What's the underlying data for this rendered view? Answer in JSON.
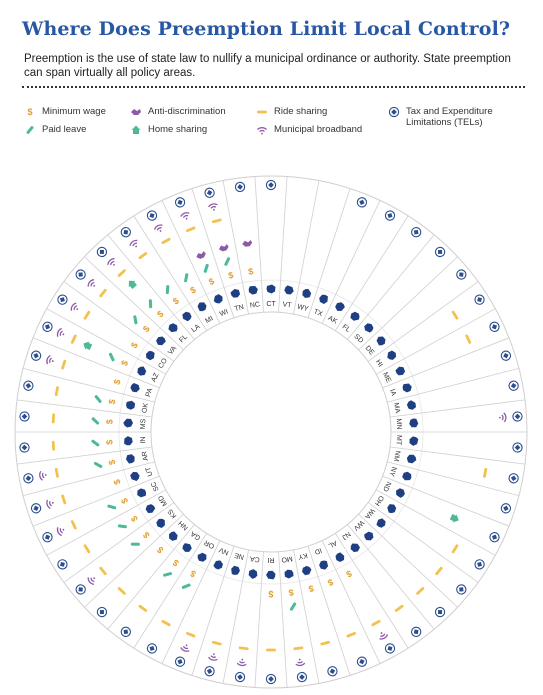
{
  "header": {
    "title": "Where Does Preemption Limit Local Control?",
    "subtitle": "Preemption is the use of state law to nullify a municipal ordinance or authority. State preemption can span virtually all policy areas."
  },
  "legend": {
    "items": [
      {
        "key": "min_wage",
        "label": "Minimum wage",
        "icon": "dollar-icon",
        "color": "#e0a030"
      },
      {
        "key": "paid_leave",
        "label": "Paid leave",
        "icon": "bandage-icon",
        "color": "#4db89a"
      },
      {
        "key": "anti_disc",
        "label": "Anti-discrimination",
        "icon": "handshake-icon",
        "color": "#8e5aa8"
      },
      {
        "key": "home_share",
        "label": "Home sharing",
        "icon": "house-icon",
        "color": "#4db89a"
      },
      {
        "key": "ride_share",
        "label": "Ride sharing",
        "icon": "car-icon",
        "color": "#f2c14e"
      },
      {
        "key": "broadband",
        "label": "Municipal broadband",
        "icon": "wifi-icon",
        "color": "#8e5aa8"
      },
      {
        "key": "tel",
        "label": "Tax and Expenditure Limitations (TELs)",
        "icon": "badge-icon",
        "color": "#2c4e8c"
      }
    ]
  },
  "colors": {
    "accent": "#2857a4",
    "state_fill": "#1e3f82",
    "ring_border": "#cfcfcf"
  },
  "chart_data": {
    "type": "radial-table",
    "ring_order_inside_out": [
      "state",
      "min_wage",
      "paid_leave",
      "anti_disc",
      "home_share",
      "ride_share",
      "broadband",
      "tel"
    ],
    "states": [
      {
        "abbr": "CT",
        "min_wage": 0,
        "paid_leave": 0,
        "anti_disc": 0,
        "home_share": 0,
        "ride_share": 0,
        "broadband": 0,
        "tel": 1
      },
      {
        "abbr": "VT",
        "min_wage": 0,
        "paid_leave": 0,
        "anti_disc": 0,
        "home_share": 0,
        "ride_share": 0,
        "broadband": 0,
        "tel": 0
      },
      {
        "abbr": "WY",
        "min_wage": 0,
        "paid_leave": 0,
        "anti_disc": 0,
        "home_share": 0,
        "ride_share": 0,
        "broadband": 0,
        "tel": 0
      },
      {
        "abbr": "TX",
        "min_wage": 0,
        "paid_leave": 0,
        "anti_disc": 0,
        "home_share": 0,
        "ride_share": 0,
        "broadband": 0,
        "tel": 1
      },
      {
        "abbr": "AK",
        "min_wage": 0,
        "paid_leave": 0,
        "anti_disc": 0,
        "home_share": 0,
        "ride_share": 0,
        "broadband": 0,
        "tel": 1
      },
      {
        "abbr": "FL",
        "min_wage": 0,
        "paid_leave": 0,
        "anti_disc": 0,
        "home_share": 0,
        "ride_share": 0,
        "broadband": 0,
        "tel": 1
      },
      {
        "abbr": "SD",
        "min_wage": 0,
        "paid_leave": 0,
        "anti_disc": 0,
        "home_share": 0,
        "ride_share": 0,
        "broadband": 0,
        "tel": 1
      },
      {
        "abbr": "DE",
        "min_wage": 0,
        "paid_leave": 0,
        "anti_disc": 0,
        "home_share": 0,
        "ride_share": 0,
        "broadband": 0,
        "tel": 1
      },
      {
        "abbr": "HI",
        "min_wage": 0,
        "paid_leave": 0,
        "anti_disc": 0,
        "home_share": 0,
        "ride_share": 1,
        "broadband": 0,
        "tel": 1
      },
      {
        "abbr": "ME",
        "min_wage": 0,
        "paid_leave": 0,
        "anti_disc": 0,
        "home_share": 0,
        "ride_share": 1,
        "broadband": 0,
        "tel": 1
      },
      {
        "abbr": "IA",
        "min_wage": 0,
        "paid_leave": 0,
        "anti_disc": 0,
        "home_share": 0,
        "ride_share": 0,
        "broadband": 0,
        "tel": 1
      },
      {
        "abbr": "MA",
        "min_wage": 0,
        "paid_leave": 0,
        "anti_disc": 0,
        "home_share": 0,
        "ride_share": 0,
        "broadband": 0,
        "tel": 1
      },
      {
        "abbr": "MN",
        "min_wage": 0,
        "paid_leave": 0,
        "anti_disc": 0,
        "home_share": 0,
        "ride_share": 0,
        "broadband": 1,
        "tel": 1
      },
      {
        "abbr": "MT",
        "min_wage": 0,
        "paid_leave": 0,
        "anti_disc": 0,
        "home_share": 0,
        "ride_share": 0,
        "broadband": 0,
        "tel": 1
      },
      {
        "abbr": "NM",
        "min_wage": 0,
        "paid_leave": 0,
        "anti_disc": 0,
        "home_share": 0,
        "ride_share": 1,
        "broadband": 0,
        "tel": 1
      },
      {
        "abbr": "NY",
        "min_wage": 0,
        "paid_leave": 0,
        "anti_disc": 0,
        "home_share": 0,
        "ride_share": 0,
        "broadband": 0,
        "tel": 1
      },
      {
        "abbr": "ND",
        "min_wage": 0,
        "paid_leave": 0,
        "anti_disc": 0,
        "home_share": 1,
        "ride_share": 0,
        "broadband": 0,
        "tel": 1
      },
      {
        "abbr": "OH",
        "min_wage": 0,
        "paid_leave": 0,
        "anti_disc": 0,
        "home_share": 0,
        "ride_share": 1,
        "broadband": 0,
        "tel": 1
      },
      {
        "abbr": "WA",
        "min_wage": 0,
        "paid_leave": 0,
        "anti_disc": 0,
        "home_share": 0,
        "ride_share": 1,
        "broadband": 0,
        "tel": 1
      },
      {
        "abbr": "WV",
        "min_wage": 0,
        "paid_leave": 0,
        "anti_disc": 0,
        "home_share": 0,
        "ride_share": 1,
        "broadband": 0,
        "tel": 1
      },
      {
        "abbr": "NJ",
        "min_wage": 0,
        "paid_leave": 0,
        "anti_disc": 0,
        "home_share": 0,
        "ride_share": 1,
        "broadband": 0,
        "tel": 1
      },
      {
        "abbr": "AL",
        "min_wage": 1,
        "paid_leave": 0,
        "anti_disc": 0,
        "home_share": 0,
        "ride_share": 1,
        "broadband": 1,
        "tel": 1
      },
      {
        "abbr": "ID",
        "min_wage": 1,
        "paid_leave": 0,
        "anti_disc": 0,
        "home_share": 0,
        "ride_share": 1,
        "broadband": 0,
        "tel": 1
      },
      {
        "abbr": "KY",
        "min_wage": 1,
        "paid_leave": 0,
        "anti_disc": 0,
        "home_share": 0,
        "ride_share": 1,
        "broadband": 0,
        "tel": 1
      },
      {
        "abbr": "MO",
        "min_wage": 1,
        "paid_leave": 1,
        "anti_disc": 0,
        "home_share": 0,
        "ride_share": 1,
        "broadband": 1,
        "tel": 1
      },
      {
        "abbr": "RI",
        "min_wage": 1,
        "paid_leave": 0,
        "anti_disc": 0,
        "home_share": 0,
        "ride_share": 1,
        "broadband": 0,
        "tel": 1
      },
      {
        "abbr": "CA",
        "min_wage": 0,
        "paid_leave": 0,
        "anti_disc": 0,
        "home_share": 0,
        "ride_share": 1,
        "broadband": 1,
        "tel": 1
      },
      {
        "abbr": "NE",
        "min_wage": 0,
        "paid_leave": 0,
        "anti_disc": 0,
        "home_share": 0,
        "ride_share": 1,
        "broadband": 1,
        "tel": 1
      },
      {
        "abbr": "NV",
        "min_wage": 0,
        "paid_leave": 0,
        "anti_disc": 0,
        "home_share": 0,
        "ride_share": 1,
        "broadband": 1,
        "tel": 1
      },
      {
        "abbr": "OR",
        "min_wage": 1,
        "paid_leave": 1,
        "anti_disc": 0,
        "home_share": 0,
        "ride_share": 1,
        "broadband": 0,
        "tel": 1
      },
      {
        "abbr": "GA",
        "min_wage": 1,
        "paid_leave": 1,
        "anti_disc": 0,
        "home_share": 0,
        "ride_share": 1,
        "broadband": 0,
        "tel": 1
      },
      {
        "abbr": "NH",
        "min_wage": 1,
        "paid_leave": 0,
        "anti_disc": 0,
        "home_share": 0,
        "ride_share": 1,
        "broadband": 0,
        "tel": 1
      },
      {
        "abbr": "KS",
        "min_wage": 1,
        "paid_leave": 1,
        "anti_disc": 0,
        "home_share": 0,
        "ride_share": 1,
        "broadband": 1,
        "tel": 1
      },
      {
        "abbr": "MD",
        "min_wage": 1,
        "paid_leave": 1,
        "anti_disc": 0,
        "home_share": 0,
        "ride_share": 1,
        "broadband": 0,
        "tel": 1
      },
      {
        "abbr": "SC",
        "min_wage": 1,
        "paid_leave": 1,
        "anti_disc": 0,
        "home_share": 0,
        "ride_share": 1,
        "broadband": 1,
        "tel": 1
      },
      {
        "abbr": "UT",
        "min_wage": 1,
        "paid_leave": 0,
        "anti_disc": 0,
        "home_share": 0,
        "ride_share": 1,
        "broadband": 1,
        "tel": 1
      },
      {
        "abbr": "AR",
        "min_wage": 1,
        "paid_leave": 1,
        "anti_disc": 0,
        "home_share": 0,
        "ride_share": 1,
        "broadband": 1,
        "tel": 1
      },
      {
        "abbr": "IN",
        "min_wage": 1,
        "paid_leave": 1,
        "anti_disc": 0,
        "home_share": 0,
        "ride_share": 1,
        "broadband": 0,
        "tel": 1
      },
      {
        "abbr": "MS",
        "min_wage": 1,
        "paid_leave": 1,
        "anti_disc": 0,
        "home_share": 0,
        "ride_share": 1,
        "broadband": 0,
        "tel": 1
      },
      {
        "abbr": "OK",
        "min_wage": 1,
        "paid_leave": 1,
        "anti_disc": 0,
        "home_share": 0,
        "ride_share": 1,
        "broadband": 0,
        "tel": 1
      },
      {
        "abbr": "PA",
        "min_wage": 1,
        "paid_leave": 0,
        "anti_disc": 0,
        "home_share": 0,
        "ride_share": 1,
        "broadband": 1,
        "tel": 1
      },
      {
        "abbr": "AZ",
        "min_wage": 1,
        "paid_leave": 1,
        "anti_disc": 0,
        "home_share": 1,
        "ride_share": 1,
        "broadband": 1,
        "tel": 1
      },
      {
        "abbr": "CO",
        "min_wage": 1,
        "paid_leave": 0,
        "anti_disc": 0,
        "home_share": 0,
        "ride_share": 1,
        "broadband": 1,
        "tel": 1
      },
      {
        "abbr": "VA",
        "min_wage": 1,
        "paid_leave": 1,
        "anti_disc": 0,
        "home_share": 0,
        "ride_share": 1,
        "broadband": 1,
        "tel": 1
      },
      {
        "abbr": "FL",
        "min_wage": 1,
        "paid_leave": 1,
        "anti_disc": 0,
        "home_share": 1,
        "ride_share": 1,
        "broadband": 1,
        "tel": 1
      },
      {
        "abbr": "LA",
        "min_wage": 1,
        "paid_leave": 1,
        "anti_disc": 0,
        "home_share": 0,
        "ride_share": 1,
        "broadband": 1,
        "tel": 1
      },
      {
        "abbr": "MI",
        "min_wage": 1,
        "paid_leave": 1,
        "anti_disc": 0,
        "home_share": 0,
        "ride_share": 1,
        "broadband": 1,
        "tel": 1
      },
      {
        "abbr": "WI",
        "min_wage": 1,
        "paid_leave": 1,
        "anti_disc": 1,
        "home_share": 0,
        "ride_share": 1,
        "broadband": 1,
        "tel": 1
      },
      {
        "abbr": "TN",
        "min_wage": 1,
        "paid_leave": 1,
        "anti_disc": 1,
        "home_share": 0,
        "ride_share": 1,
        "broadband": 1,
        "tel": 1
      },
      {
        "abbr": "NC",
        "min_wage": 1,
        "paid_leave": 0,
        "anti_disc": 1,
        "home_share": 0,
        "ride_share": 0,
        "broadband": 0,
        "tel": 1
      }
    ]
  }
}
